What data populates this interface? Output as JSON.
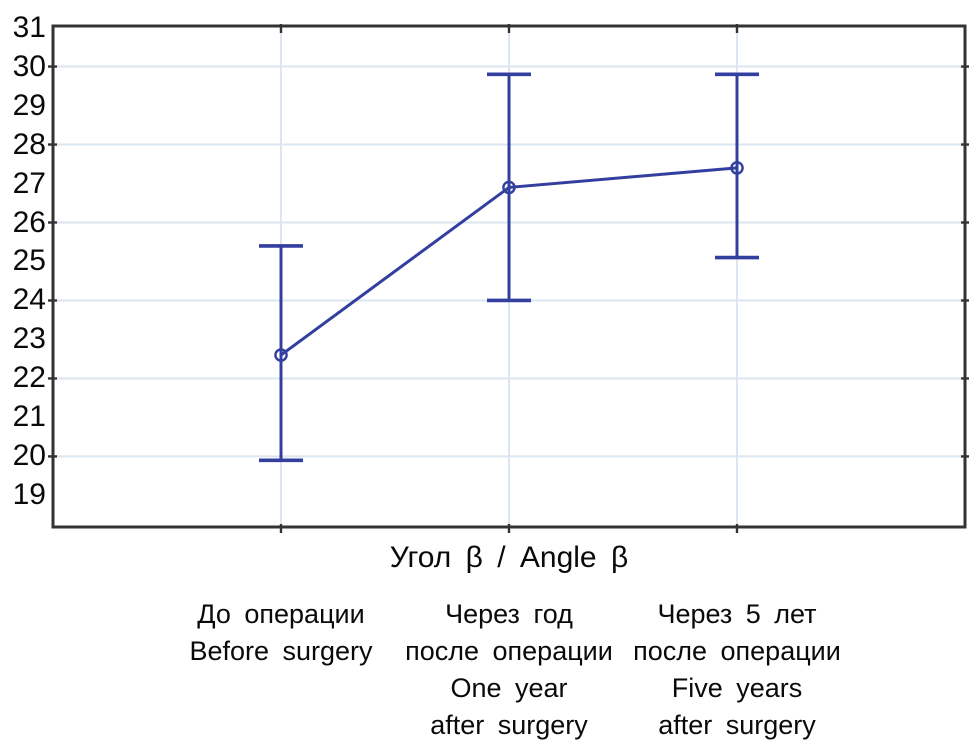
{
  "figure": {
    "background": "#ffffff"
  },
  "chart_data": {
    "type": "line",
    "subtype": "means-with-error-bars",
    "x_axis_title": "Угол β / Angle β",
    "categories": [
      {
        "id": "before-surgery",
        "lines": [
          "До операции",
          "Before surgery"
        ]
      },
      {
        "id": "one-year-after-surgery",
        "lines": [
          "Через год",
          "после операции",
          "One year",
          "after surgery"
        ]
      },
      {
        "id": "five-years-after-surgery",
        "lines": [
          "Через 5 лет",
          "после операции",
          "Five years",
          "after surgery"
        ]
      }
    ],
    "series": [
      {
        "name": "Угол β / Angle β",
        "means": [
          22.6,
          26.9,
          27.4
        ],
        "whisker_low": [
          19.9,
          24.0,
          25.1
        ],
        "whisker_high": [
          25.4,
          29.8,
          29.8
        ]
      }
    ],
    "ylim": [
      18.19,
      31.04
    ],
    "y_tick_labels": [
      "31",
      "30",
      "29",
      "28",
      "27",
      "26",
      "25",
      "24",
      "23",
      "22",
      "21",
      "20",
      "19"
    ],
    "y_gridline_values": [
      30,
      28,
      26,
      24,
      22,
      20
    ],
    "grid": true,
    "legend": false,
    "marker": "open-circle",
    "colors": {
      "series": "#333f9f",
      "gridline": "#dbe6f1",
      "axis_border": "#333333",
      "tick": "#333333",
      "text": "#0a0a0a"
    }
  }
}
